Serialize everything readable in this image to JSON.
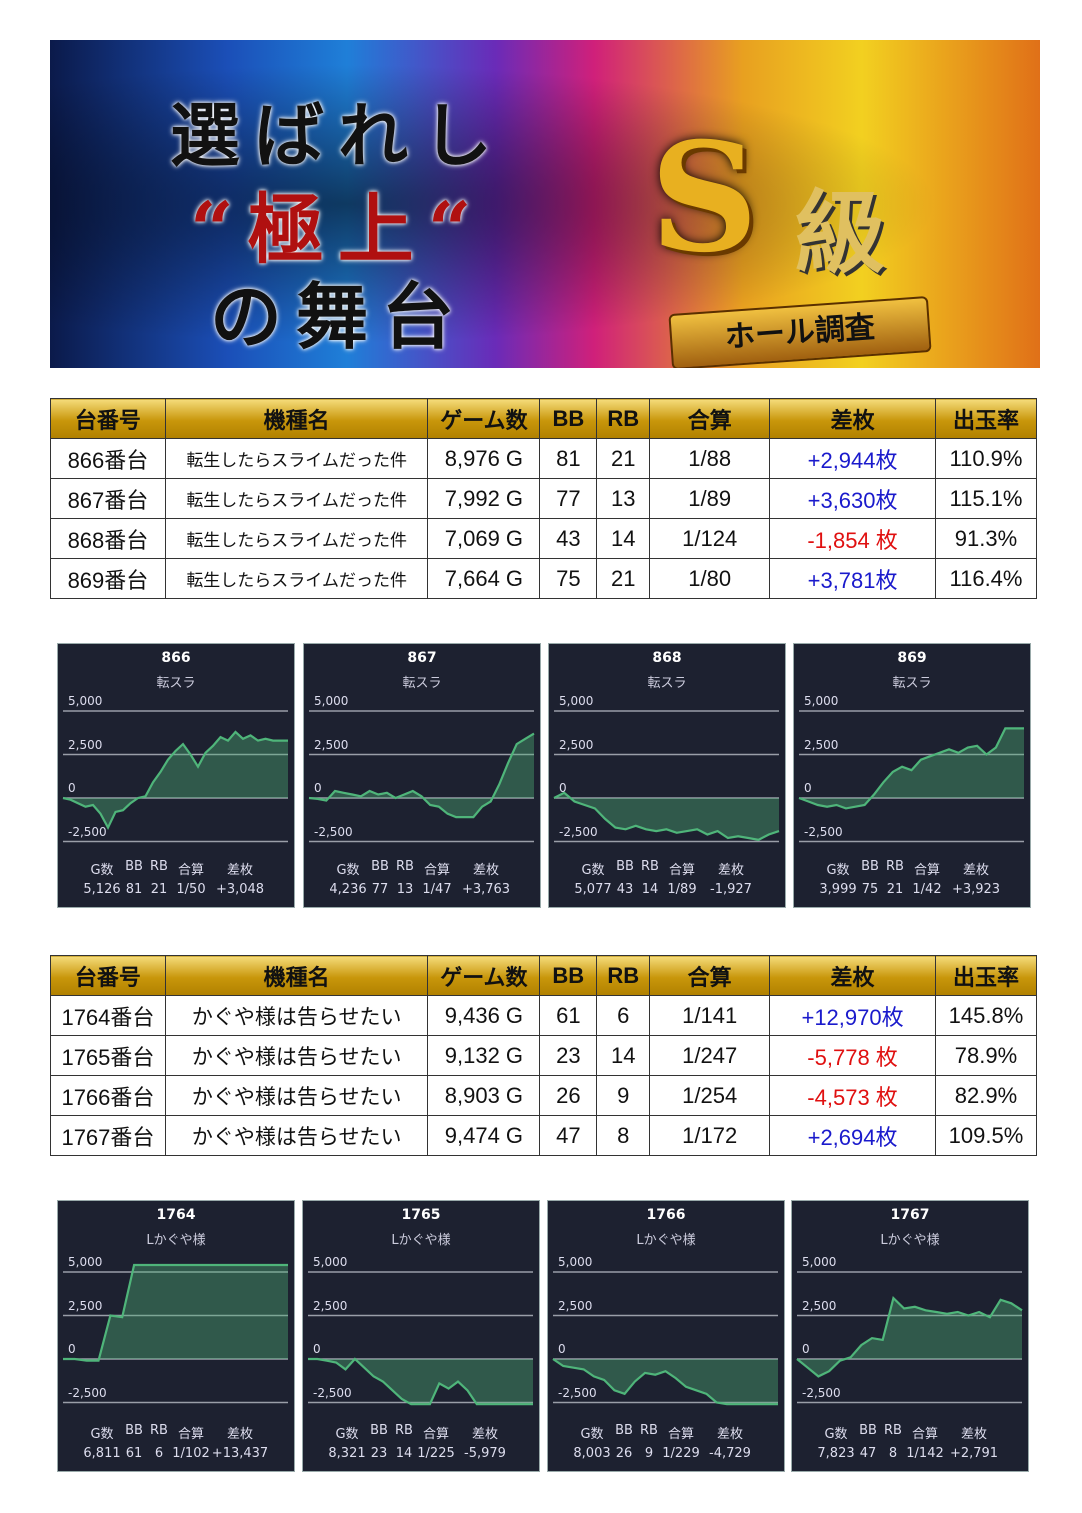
{
  "banner": {
    "line1": "選ばれし",
    "line2": "“極上“",
    "line3": "の舞台",
    "emblem_s": "S",
    "emblem_kyu": "級",
    "ribbon": "ホール調査"
  },
  "headers": [
    "台番号",
    "機種名",
    "ゲーム数",
    "BB",
    "RB",
    "合算",
    "差枚",
    "出玉率"
  ],
  "table1": [
    [
      "866番台",
      "転生したらスライムだった件",
      "8,976 G",
      "81",
      "21",
      "1/88",
      "+2,944枚",
      "110.9%"
    ],
    [
      "867番台",
      "転生したらスライムだった件",
      "7,992 G",
      "77",
      "13",
      "1/89",
      "+3,630枚",
      "115.1%"
    ],
    [
      "868番台",
      "転生したらスライムだった件",
      "7,069 G",
      "43",
      "14",
      "1/124",
      "-1,854 枚",
      "91.3%"
    ],
    [
      "869番台",
      "転生したらスライムだった件",
      "7,664 G",
      "75",
      "21",
      "1/80",
      "+3,781枚",
      "116.4%"
    ]
  ],
  "table2": [
    [
      "1764番台",
      "かぐや様は告らせたい",
      "9,436 G",
      "61",
      "6",
      "1/141",
      "+12,970枚",
      "145.8%"
    ],
    [
      "1765番台",
      "かぐや様は告らせたい",
      "9,132 G",
      "23",
      "14",
      "1/247",
      "-5,778 枚",
      "78.9%"
    ],
    [
      "1766番台",
      "かぐや様は告らせたい",
      "8,903 G",
      "26",
      "9",
      "1/254",
      "-4,573 枚",
      "82.9%"
    ],
    [
      "1767番台",
      "かぐや様は告らせたい",
      "9,474 G",
      "47",
      "8",
      "1/172",
      "+2,694枚",
      "109.5%"
    ]
  ],
  "colors": {
    "positive": "#1a1acc",
    "negative": "#e01010",
    "header_gold": "#d4a614",
    "panel_bg": "#1d2130",
    "line": "#4fb57a"
  },
  "stat_labels": [
    "G数",
    "BB",
    "RB",
    "合算",
    "差枚"
  ],
  "chart_data": [
    {
      "type": "area",
      "title": "866",
      "subtitle": "転スラ",
      "yticks": [
        "5,000",
        "2,500",
        "0",
        "-2,500"
      ],
      "ylim": [
        -2500,
        5000
      ],
      "values": [
        0,
        -100,
        -300,
        -500,
        -400,
        -900,
        -1700,
        -800,
        -700,
        -300,
        0,
        100,
        900,
        1500,
        2200,
        2700,
        3100,
        2500,
        1800,
        2600,
        3000,
        3500,
        3300,
        3800,
        3400,
        3600,
        3300,
        3400,
        3300,
        3300,
        3300
      ],
      "stats": [
        "5,126",
        "81",
        "21",
        "1/50",
        "+3,048"
      ]
    },
    {
      "type": "area",
      "title": "867",
      "subtitle": "転スラ",
      "yticks": [
        "5,000",
        "2,500",
        "0",
        "-2,500"
      ],
      "ylim": [
        -2500,
        5000
      ],
      "values": [
        0,
        -50,
        -150,
        400,
        300,
        200,
        100,
        400,
        200,
        300,
        0,
        200,
        400,
        100,
        -400,
        -500,
        -900,
        -1100,
        -1100,
        -1100,
        -500,
        -200,
        800,
        2000,
        3100,
        3400,
        3700
      ],
      "stats": [
        "4,236",
        "77",
        "13",
        "1/47",
        "+3,763"
      ]
    },
    {
      "type": "area",
      "title": "868",
      "subtitle": "転スラ",
      "yticks": [
        "5,000",
        "2,500",
        "0",
        "-2,500"
      ],
      "ylim": [
        -2500,
        5000
      ],
      "values": [
        0,
        300,
        -200,
        -400,
        -600,
        -1200,
        -1700,
        -1800,
        -1600,
        -1800,
        -1900,
        -1800,
        -2000,
        -1900,
        -1800,
        -2100,
        -1900,
        -2300,
        -2200,
        -2300,
        -2400,
        -2100,
        -1900
      ],
      "stats": [
        "5,077",
        "43",
        "14",
        "1/89",
        "-1,927"
      ]
    },
    {
      "type": "area",
      "title": "869",
      "subtitle": "転スラ",
      "yticks": [
        "5,000",
        "2,500",
        "0",
        "-2,500"
      ],
      "ylim": [
        -2500,
        5000
      ],
      "values": [
        0,
        -200,
        -400,
        -500,
        -400,
        -600,
        -500,
        -400,
        200,
        900,
        1500,
        1800,
        1600,
        2200,
        2400,
        2600,
        2800,
        2600,
        2900,
        3000,
        2500,
        2900,
        4000,
        4000,
        4000
      ],
      "stats": [
        "3,999",
        "75",
        "21",
        "1/42",
        "+3,923"
      ]
    },
    {
      "type": "area",
      "title": "1764",
      "subtitle": "Lかぐや様",
      "yticks": [
        "5,000",
        "2,500",
        "0",
        "-2,500"
      ],
      "ylim": [
        -2500,
        5000
      ],
      "values": [
        0,
        0,
        -100,
        -100,
        2500,
        2400,
        5400,
        5400,
        5400,
        5400,
        5400,
        5400,
        5400,
        5400,
        5400,
        5400,
        5400,
        5400,
        5400,
        5400
      ],
      "stats": [
        "6,811",
        "61",
        "6",
        "1/102",
        "+13,437"
      ]
    },
    {
      "type": "area",
      "title": "1765",
      "subtitle": "Lかぐや様",
      "yticks": [
        "5,000",
        "2,500",
        "0",
        "-2,500"
      ],
      "ylim": [
        -2500,
        5000
      ],
      "values": [
        0,
        0,
        -100,
        -200,
        -600,
        0,
        -500,
        -1000,
        -1300,
        -1800,
        -2300,
        -2600,
        -2600,
        -2600,
        -1400,
        -1700,
        -1300,
        -1800,
        -2600,
        -2600,
        -2600,
        -2600,
        -2600,
        -2600,
        -2600
      ],
      "stats": [
        "8,321",
        "23",
        "14",
        "1/225",
        "-5,979"
      ]
    },
    {
      "type": "area",
      "title": "1766",
      "subtitle": "Lかぐや様",
      "yticks": [
        "5,000",
        "2,500",
        "0",
        "-2,500"
      ],
      "ylim": [
        -2500,
        5000
      ],
      "values": [
        0,
        -400,
        -500,
        -600,
        -1000,
        -1200,
        -1800,
        -2000,
        -1300,
        -800,
        -900,
        -700,
        -1100,
        -1600,
        -1800,
        -2000,
        -2500,
        -2600,
        -2600,
        -2600,
        -2600,
        -2600,
        -2600
      ],
      "stats": [
        "8,003",
        "26",
        "9",
        "1/229",
        "-4,729"
      ]
    },
    {
      "type": "area",
      "title": "1767",
      "subtitle": "Lかぐや様",
      "yticks": [
        "5,000",
        "2,500",
        "0",
        "-2,500"
      ],
      "ylim": [
        -2500,
        5000
      ],
      "values": [
        0,
        -500,
        -1000,
        -700,
        -100,
        100,
        800,
        1200,
        1100,
        3500,
        2900,
        3000,
        2800,
        2700,
        2600,
        2700,
        2500,
        2700,
        2400,
        3400,
        3200,
        2800
      ],
      "stats": [
        "7,823",
        "47",
        "8",
        "1/142",
        "+2,791"
      ]
    }
  ]
}
